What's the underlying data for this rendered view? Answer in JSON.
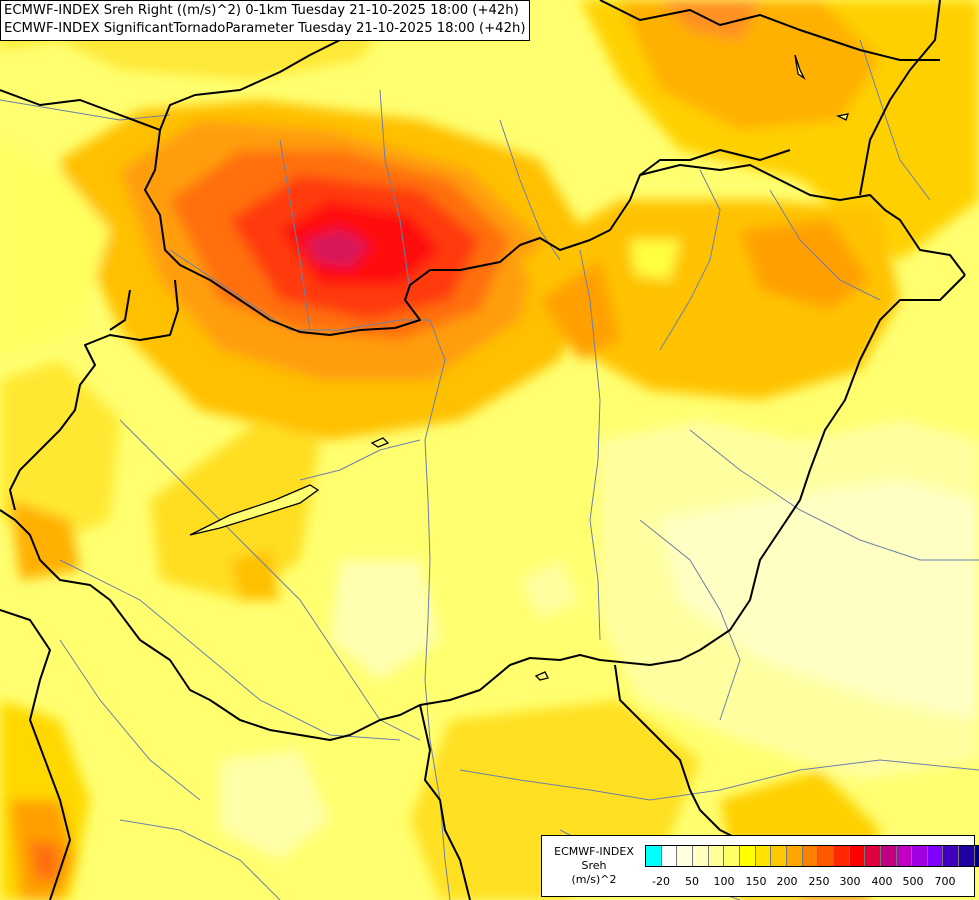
{
  "header": {
    "line1": "ECMWF-INDEX Sreh Right ((m/s)^2) 0-1km Tuesday 21-10-2025 18:00 (+42h)",
    "line2": "ECMWF-INDEX SignificantTornadoParameter Tuesday 21-10-2025 18:00 (+42h)"
  },
  "legend": {
    "title_line1": "ECMWF-INDEX",
    "title_line2": "Sreh",
    "title_line3": "(m/s)^2",
    "colors": [
      "#00ffff",
      "#ffffff",
      "#ffffe0",
      "#ffffc0",
      "#ffff99",
      "#ffff66",
      "#ffff00",
      "#ffe400",
      "#ffc800",
      "#ffa500",
      "#ff8000",
      "#ff5a00",
      "#ff2800",
      "#ff0000",
      "#e00040",
      "#c00080",
      "#c000c0",
      "#a000e0",
      "#8000ff",
      "#4000c0",
      "#2000a0",
      "#000080"
    ],
    "ticks": [
      "-20",
      "50",
      "100",
      "150",
      "200",
      "250",
      "300",
      "400",
      "500",
      "700"
    ]
  }
}
